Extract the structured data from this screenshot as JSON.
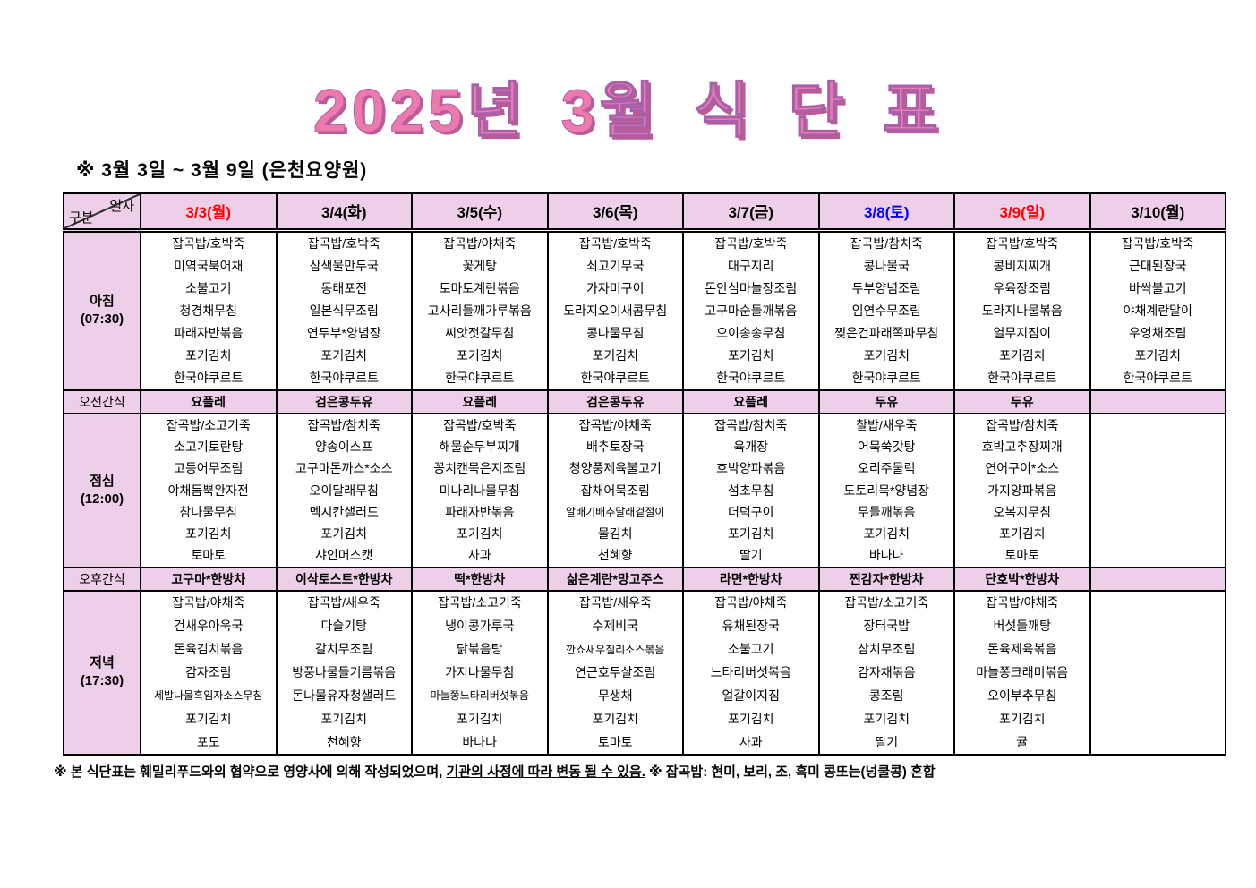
{
  "title": "2025년 3월 식 단 표",
  "subtitle": "※ 3월 3일 ~ 3월 9일 (은천요양원)",
  "colors": {
    "cell_pink": "#eecfe9",
    "title_pink": "#ee79ad",
    "title_shadow": "#c05a92",
    "date_red": "#ff0000",
    "date_blue": "#0000ff",
    "date_black": "#000000",
    "border_black": "#000000"
  },
  "table": {
    "corner": {
      "top": "일자",
      "bottom": "구분"
    },
    "dates": [
      {
        "label": "3/3(월)",
        "color": "#ff0000"
      },
      {
        "label": "3/4(화)",
        "color": "#000000"
      },
      {
        "label": "3/5(수)",
        "color": "#000000"
      },
      {
        "label": "3/6(목)",
        "color": "#000000"
      },
      {
        "label": "3/7(금)",
        "color": "#000000"
      },
      {
        "label": "3/8(토)",
        "color": "#0000ff"
      },
      {
        "label": "3/9(일)",
        "color": "#ff0000"
      },
      {
        "label": "3/10(월)",
        "color": "#000000"
      }
    ],
    "rows": [
      {
        "key": "breakfast",
        "type": "meal",
        "label": "아침",
        "time": "(07:30)",
        "columns": [
          [
            "잡곡밥/호박죽",
            "미역국북어채",
            "소불고기",
            "청경채무침",
            "파래자반볶음",
            "포기김치",
            "한국야쿠르트"
          ],
          [
            "잡곡밥/호박죽",
            "삼색물만두국",
            "동태포전",
            "일본식무조림",
            "연두부*양념장",
            "포기김치",
            "한국야쿠르트"
          ],
          [
            "잡곡밥/야채죽",
            "꽃게탕",
            "토마토계란볶음",
            "고사리들깨가루볶음",
            "씨앗젓갈무침",
            "포기김치",
            "한국야쿠르트"
          ],
          [
            "잡곡밥/호박죽",
            "쇠고기무국",
            "가자미구이",
            "도라지오이새콤무침",
            "콩나물무침",
            "포기김치",
            "한국야쿠르트"
          ],
          [
            "잡곡밥/호박죽",
            "대구지리",
            "돈안심마늘장조림",
            "고구마순들깨볶음",
            "오이송송무침",
            "포기김치",
            "한국야쿠르트"
          ],
          [
            "잡곡밥/참치죽",
            "콩나물국",
            "두부양념조림",
            "임연수무조림",
            "찢은건파래쪽파무침",
            "포기김치",
            "한국야쿠르트"
          ],
          [
            "잡곡밥/호박죽",
            "콩비지찌개",
            "우육장조림",
            "도라지나물볶음",
            "열무지짐이",
            "포기김치",
            "한국야쿠르트"
          ],
          [
            "잡곡밥/호박죽",
            "근대된장국",
            "바싹불고기",
            "야채계란말이",
            "우엉채조림",
            "포기김치",
            "한국야쿠르트"
          ]
        ]
      },
      {
        "key": "morning-snack",
        "type": "snack",
        "label": "오전간식",
        "values": [
          "요플레",
          "검은콩두유",
          "요플레",
          "검은콩두유",
          "요플레",
          "두유",
          "두유",
          ""
        ]
      },
      {
        "key": "lunch",
        "type": "meal",
        "label": "점심",
        "time": "(12:00)",
        "columns": [
          [
            "잡곡밥/소고기죽",
            "소고기토란탕",
            "고등어무조림",
            "야채듬뿍완자전",
            "참나물무침",
            "포기김치",
            "토마토"
          ],
          [
            "잡곡밥/참치죽",
            "양송이스프",
            "고구마돈까스*소스",
            "오이달래무침",
            "멕시칸샐러드",
            "포기김치",
            "샤인머스캣"
          ],
          [
            "잡곡밥/호박죽",
            "해물순두부찌개",
            "꽁치캔묵은지조림",
            "미나리나물무침",
            "파래자반볶음",
            "포기김치",
            "사과"
          ],
          [
            "잡곡밥/야채죽",
            "배추토장국",
            "청양풍제육불고기",
            "잡채어묵조림",
            "알배기배추달래겉절이",
            "물김치",
            "천혜향"
          ],
          [
            "잡곡밥/참치죽",
            "육개장",
            "호박양파볶음",
            "섬초무침",
            "더덕구이",
            "포기김치",
            "딸기"
          ],
          [
            "찰밥/새우죽",
            "어묵쑥갓탕",
            "오리주물럭",
            "도토리묵*양념장",
            "무들깨볶음",
            "포기김치",
            "바나나"
          ],
          [
            "잡곡밥/참치죽",
            "호박고추장찌개",
            "연어구이*소스",
            "가지양파볶음",
            "오복지무침",
            "포기김치",
            "토마토"
          ],
          []
        ]
      },
      {
        "key": "afternoon-snack",
        "type": "snack",
        "label": "오후간식",
        "values": [
          "고구마*한방차",
          "이삭토스트*한방차",
          "떡*한방차",
          "삶은계란*망고주스",
          "라면*한방차",
          "찐감자*한방차",
          "단호박*한방차",
          ""
        ]
      },
      {
        "key": "dinner",
        "type": "meal",
        "label": "저녁",
        "time": "(17:30)",
        "columns": [
          [
            "잡곡밥/야채죽",
            "건새우아욱국",
            "돈육김치볶음",
            "감자조림",
            "세발나물흑임자소스무침",
            "포기김치",
            "포도"
          ],
          [
            "잡곡밥/새우죽",
            "다슬기탕",
            "갈치무조림",
            "방풍나물들기름볶음",
            "돈나물유자청샐러드",
            "포기김치",
            "천혜향"
          ],
          [
            "잡곡밥/소고기죽",
            "냉이콩가루국",
            "닭볶음탕",
            "가지나물무침",
            "마늘쫑느타리버섯볶음",
            "포기김치",
            "바나나"
          ],
          [
            "잡곡밥/새우죽",
            "수제비국",
            "깐쇼새우칠리소스볶음",
            "연근호두살조림",
            "무생채",
            "포기김치",
            "토마토"
          ],
          [
            "잡곡밥/야채죽",
            "유채된장국",
            "소불고기",
            "느타리버섯볶음",
            "얼갈이지짐",
            "포기김치",
            "사과"
          ],
          [
            "잡곡밥/소고기죽",
            "장터국밥",
            "삼치무조림",
            "감자채볶음",
            "콩조림",
            "포기김치",
            "딸기"
          ],
          [
            "잡곡밥/야채죽",
            "버섯들깨탕",
            "돈육제육볶음",
            "마늘쫑크래미볶음",
            "오이부추무침",
            "포기김치",
            "귤"
          ],
          []
        ]
      }
    ]
  },
  "footer": {
    "part1": "※ 본 식단표는 훼밀리푸드와의 협약으로 영양사에 의해 작성되었으며, ",
    "underlined": "기관의 사정에 따라 변동 될 수 있음.",
    "part2": " ※ 잡곡밥: 현미, 보리, 조, 흑미 콩또는(넝쿨콩) 혼합"
  }
}
